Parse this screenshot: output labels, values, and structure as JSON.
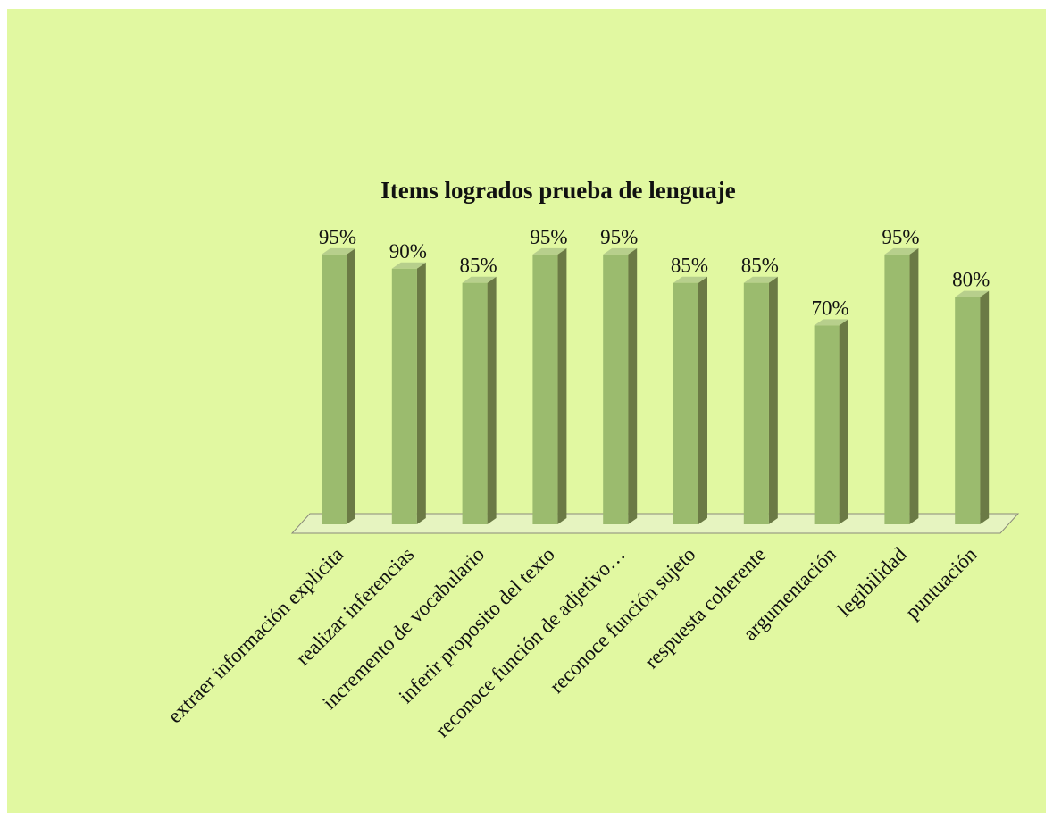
{
  "chart_data": {
    "type": "bar3d",
    "title": "Items logrados prueba de lenguaje",
    "categories": [
      "extraer información explicita",
      "realizar inferencias",
      "incremento de vocabulario",
      "inferir proposito del texto",
      "reconoce función de adjetivo…",
      "reconoce función sujeto",
      "respuesta coherente",
      "argumentación",
      "legibilidad",
      "puntuación"
    ],
    "values": [
      95,
      90,
      85,
      95,
      95,
      85,
      85,
      70,
      95,
      80
    ],
    "value_labels": [
      "95%",
      "90%",
      "85%",
      "95%",
      "95%",
      "85%",
      "85%",
      "70%",
      "95%",
      "80%"
    ],
    "color": "#9bbb6e"
  }
}
